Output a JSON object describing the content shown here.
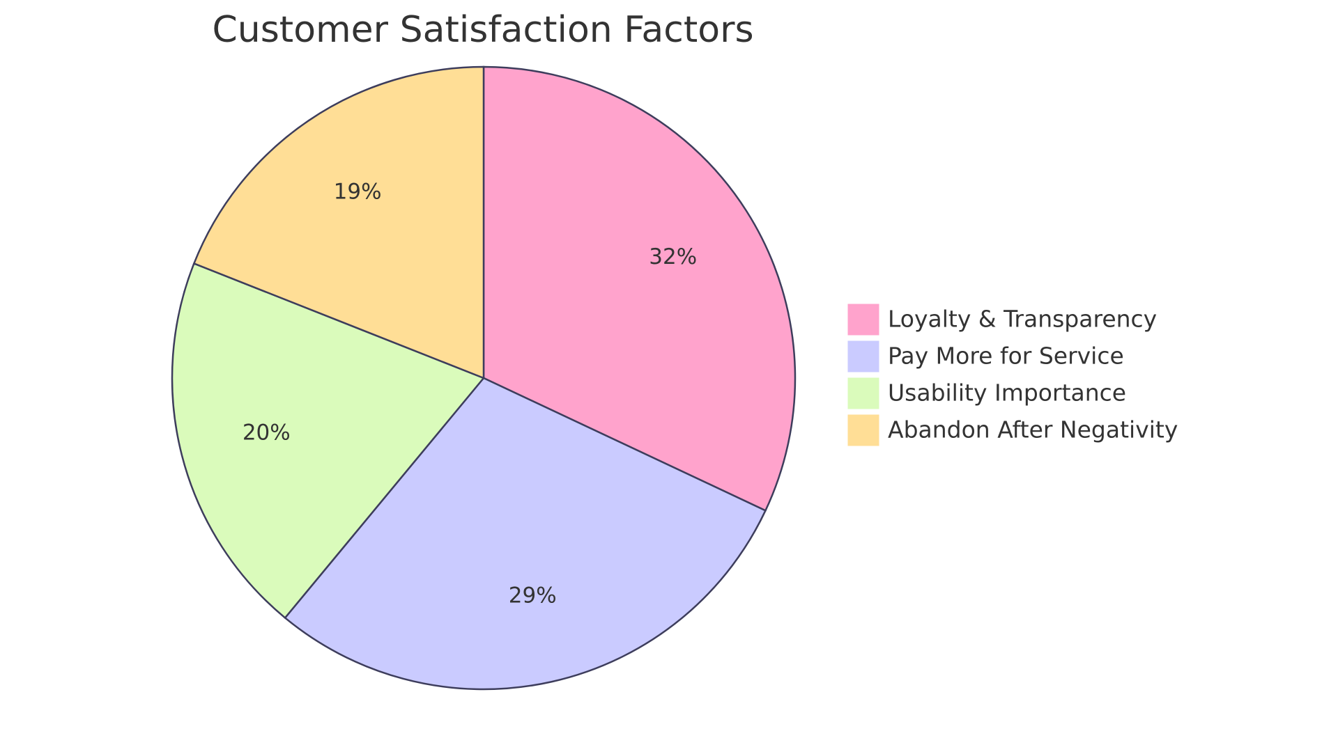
{
  "chart_data": {
    "type": "pie",
    "title": "Customer Satisfaction Factors",
    "legend_position": "right",
    "slices": [
      {
        "label": "Loyalty & Transparency",
        "value": 32,
        "value_label": "32%",
        "color": "#FFA3CC"
      },
      {
        "label": "Pay More for Service",
        "value": 29,
        "value_label": "29%",
        "color": "#CACBFF"
      },
      {
        "label": "Usability Importance",
        "value": 20,
        "value_label": "20%",
        "color": "#DAFBBB"
      },
      {
        "label": "Abandon After Negativity",
        "value": 19,
        "value_label": "19%",
        "color": "#FFDE96"
      }
    ]
  }
}
